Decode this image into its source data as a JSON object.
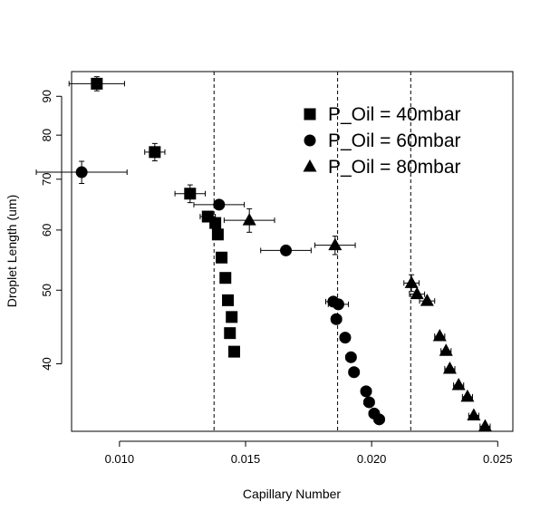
{
  "chart_data": {
    "type": "scatter",
    "xlabel": "Capillary Number",
    "ylabel": "Droplet Length (um)",
    "x_scale": "linear",
    "y_scale": "log",
    "xlim": [
      0.0081,
      0.0256
    ],
    "ylim": [
      32.6,
      97
    ],
    "x_ticks": [
      {
        "value": 0.01,
        "label": "0.010"
      },
      {
        "value": 0.015,
        "label": "0.015"
      },
      {
        "value": 0.02,
        "label": "0.020"
      },
      {
        "value": 0.025,
        "label": "0.025"
      }
    ],
    "y_ticks": [
      {
        "value": 40,
        "label": "40"
      },
      {
        "value": 50,
        "label": "50"
      },
      {
        "value": 60,
        "label": "60"
      },
      {
        "value": 70,
        "label": "70"
      },
      {
        "value": 80,
        "label": "80"
      },
      {
        "value": 90,
        "label": "90"
      }
    ],
    "vlines": [
      0.01375,
      0.01865,
      0.02155
    ],
    "vline_style": "dashed",
    "grid": false,
    "legend_position": "top-right",
    "series": [
      {
        "name": "P_Oil = 40mbar",
        "marker": "square",
        "points": [
          {
            "x": 0.0091,
            "y": 93.5,
            "xerr": 0.0011,
            "yerr": 2.0
          },
          {
            "x": 0.0114,
            "y": 76,
            "xerr": 0.0004,
            "yerr": 2.0
          },
          {
            "x": 0.0128,
            "y": 67,
            "xerr": 0.0006,
            "yerr": 1.8
          },
          {
            "x": 0.0135,
            "y": 62.5,
            "xerr": 0.0003,
            "yerr": 0
          },
          {
            "x": 0.0138,
            "y": 61.3,
            "xerr": 0.0002,
            "yerr": 0
          },
          {
            "x": 0.0139,
            "y": 59.2,
            "xerr": 0.0001,
            "yerr": 0
          },
          {
            "x": 0.01405,
            "y": 55.2,
            "xerr": 0,
            "yerr": 0
          },
          {
            "x": 0.0142,
            "y": 51.9,
            "xerr": 0,
            "yerr": 0
          },
          {
            "x": 0.0143,
            "y": 48.5,
            "xerr": 0,
            "yerr": 0
          },
          {
            "x": 0.01445,
            "y": 46.1,
            "xerr": 0,
            "yerr": 0
          },
          {
            "x": 0.01438,
            "y": 43.9,
            "xerr": 0,
            "yerr": 0
          },
          {
            "x": 0.01455,
            "y": 41.5,
            "xerr": 0,
            "yerr": 0
          }
        ]
      },
      {
        "name": "P_Oil = 60mbar",
        "marker": "circle",
        "points": [
          {
            "x": 0.0085,
            "y": 71.5,
            "xerr": 0.0018,
            "yerr": 2.4
          },
          {
            "x": 0.01395,
            "y": 64.8,
            "xerr": 0.001,
            "yerr": 0
          },
          {
            "x": 0.0166,
            "y": 56.4,
            "xerr": 0.001,
            "yerr": 0
          },
          {
            "x": 0.01848,
            "y": 48.3,
            "xerr": 0.0003,
            "yerr": 0
          },
          {
            "x": 0.01868,
            "y": 47.9,
            "xerr": 0.0004,
            "yerr": 0
          },
          {
            "x": 0.0186,
            "y": 45.8,
            "xerr": 0.0002,
            "yerr": 0
          },
          {
            "x": 0.01895,
            "y": 43.3,
            "xerr": 0.0002,
            "yerr": 0
          },
          {
            "x": 0.01918,
            "y": 40.8,
            "xerr": 0.0002,
            "yerr": 0
          },
          {
            "x": 0.0193,
            "y": 39.0,
            "xerr": 0.0002,
            "yerr": 0
          },
          {
            "x": 0.01978,
            "y": 36.8,
            "xerr": 0.0002,
            "yerr": 0
          },
          {
            "x": 0.0199,
            "y": 35.6,
            "xerr": 0.0002,
            "yerr": 0
          },
          {
            "x": 0.0201,
            "y": 34.4,
            "xerr": 0.0002,
            "yerr": 0
          },
          {
            "x": 0.0203,
            "y": 33.8,
            "xerr": 0.0002,
            "yerr": 0
          }
        ]
      },
      {
        "name": "P_Oil = 80mbar",
        "marker": "triangle",
        "points": [
          {
            "x": 0.01515,
            "y": 61.8,
            "xerr": 0.001,
            "yerr": 2.2
          },
          {
            "x": 0.01855,
            "y": 57.3,
            "xerr": 0.0008,
            "yerr": 1.6
          },
          {
            "x": 0.02158,
            "y": 51.1,
            "xerr": 0.0003,
            "yerr": 1.3
          },
          {
            "x": 0.0218,
            "y": 49.4,
            "xerr": 0.0003,
            "yerr": 0
          },
          {
            "x": 0.0222,
            "y": 48.4,
            "xerr": 0.0003,
            "yerr": 0
          },
          {
            "x": 0.0227,
            "y": 43.5,
            "xerr": 0.0002,
            "yerr": 0
          },
          {
            "x": 0.02295,
            "y": 41.6,
            "xerr": 0.0002,
            "yerr": 0
          },
          {
            "x": 0.0231,
            "y": 39.4,
            "xerr": 0.0002,
            "yerr": 0
          },
          {
            "x": 0.02345,
            "y": 37.5,
            "xerr": 0.0002,
            "yerr": 0
          },
          {
            "x": 0.0238,
            "y": 36.2,
            "xerr": 0.0002,
            "yerr": 0
          },
          {
            "x": 0.02405,
            "y": 34.2,
            "xerr": 0.0002,
            "yerr": 0
          },
          {
            "x": 0.0245,
            "y": 33.1,
            "xerr": 0.0002,
            "yerr": 0
          }
        ]
      }
    ]
  }
}
